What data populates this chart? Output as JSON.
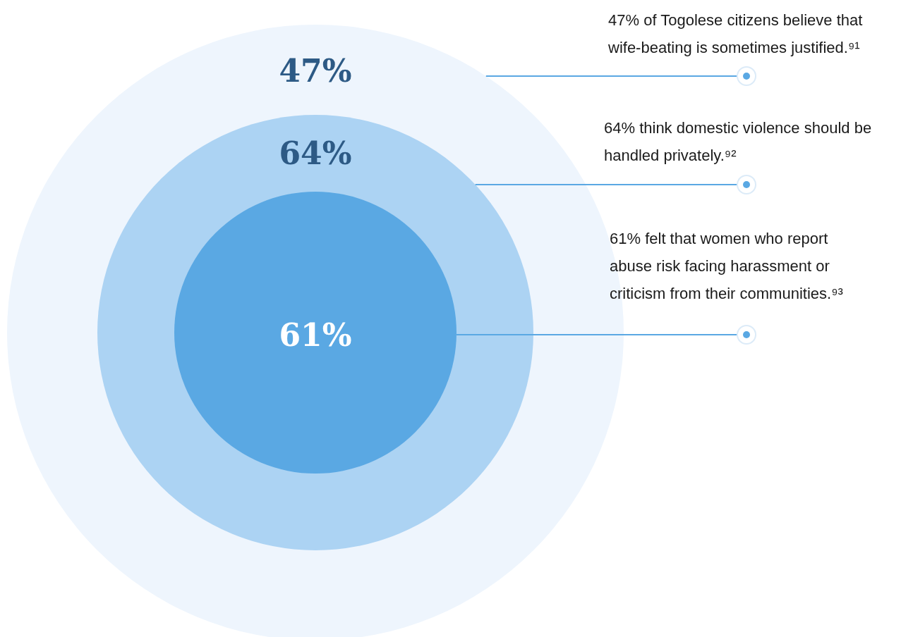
{
  "chart_data": {
    "type": "other",
    "categories": [
      "47% of Togolese citizens believe that wife-beating is sometimes justified.⁹¹",
      "64% think domestic violence should be handled privately.⁹²",
      "61% felt that women who report abuse risk facing harassment or criticism from their communities.⁹³"
    ],
    "values": [
      47,
      64,
      61
    ],
    "value_labels": [
      "47%",
      "64%",
      "61%"
    ],
    "colors": [
      "#eef5fd",
      "#acd3f3",
      "#5aa8e3"
    ]
  }
}
